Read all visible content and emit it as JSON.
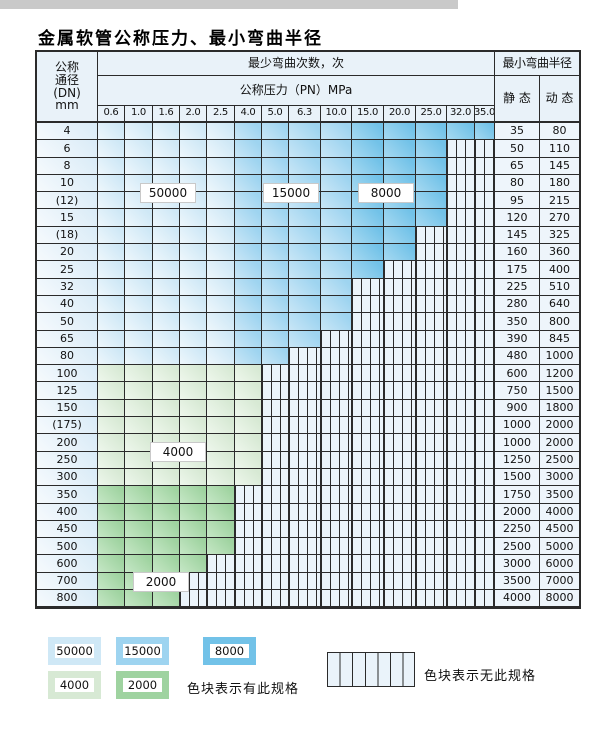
{
  "title": "金属软管公称压力、最小弯曲半径",
  "table": {
    "dn_header": "公称\n通径\n(DN)\nmm",
    "bend_times_label": "最少弯曲次数，次",
    "pn_label": "公称压力（PN）MPa",
    "bend_radius_label": "最小弯曲半径",
    "static_label": "静 态",
    "dynamic_label": "动 态",
    "pressure_columns": [
      "0.6",
      "1.0",
      "1.6",
      "2.0",
      "2.5",
      "4.0",
      "5.0",
      "6.3",
      "10.0",
      "15.0",
      "20.0",
      "25.0",
      "32.0",
      "35.0"
    ],
    "rows": [
      {
        "dn": "4",
        "zone": "blue",
        "last_col": 13,
        "static": "35",
        "dynamic": "80"
      },
      {
        "dn": "6",
        "zone": "blue",
        "last_col": 11,
        "static": "50",
        "dynamic": "110"
      },
      {
        "dn": "8",
        "zone": "blue",
        "last_col": 11,
        "static": "65",
        "dynamic": "145"
      },
      {
        "dn": "10",
        "zone": "blue",
        "last_col": 11,
        "static": "80",
        "dynamic": "180"
      },
      {
        "dn": "(12)",
        "zone": "blue",
        "last_col": 11,
        "static": "95",
        "dynamic": "215"
      },
      {
        "dn": "15",
        "zone": "blue",
        "last_col": 11,
        "static": "120",
        "dynamic": "270"
      },
      {
        "dn": "(18)",
        "zone": "blue",
        "last_col": 10,
        "static": "145",
        "dynamic": "325"
      },
      {
        "dn": "20",
        "zone": "blue",
        "last_col": 10,
        "static": "160",
        "dynamic": "360"
      },
      {
        "dn": "25",
        "zone": "blue",
        "last_col": 9,
        "static": "175",
        "dynamic": "400"
      },
      {
        "dn": "32",
        "zone": "blue",
        "last_col": 8,
        "static": "225",
        "dynamic": "510"
      },
      {
        "dn": "40",
        "zone": "blue",
        "last_col": 8,
        "static": "280",
        "dynamic": "640"
      },
      {
        "dn": "50",
        "zone": "blue",
        "last_col": 8,
        "static": "350",
        "dynamic": "800"
      },
      {
        "dn": "65",
        "zone": "blue",
        "last_col": 7,
        "static": "390",
        "dynamic": "845"
      },
      {
        "dn": "80",
        "zone": "blue",
        "last_col": 6,
        "static": "480",
        "dynamic": "1000"
      },
      {
        "dn": "100",
        "zone": "green4000",
        "last_col": 5,
        "static": "600",
        "dynamic": "1200"
      },
      {
        "dn": "125",
        "zone": "green4000",
        "last_col": 5,
        "static": "750",
        "dynamic": "1500"
      },
      {
        "dn": "150",
        "zone": "green4000",
        "last_col": 5,
        "static": "900",
        "dynamic": "1800"
      },
      {
        "dn": "(175)",
        "zone": "green4000",
        "last_col": 5,
        "static": "1000",
        "dynamic": "2000"
      },
      {
        "dn": "200",
        "zone": "green4000",
        "last_col": 5,
        "static": "1000",
        "dynamic": "2000"
      },
      {
        "dn": "250",
        "zone": "green4000",
        "last_col": 5,
        "static": "1250",
        "dynamic": "2500"
      },
      {
        "dn": "300",
        "zone": "green4000",
        "last_col": 5,
        "static": "1500",
        "dynamic": "3000"
      },
      {
        "dn": "350",
        "zone": "green2000",
        "last_col": 4,
        "static": "1750",
        "dynamic": "3500"
      },
      {
        "dn": "400",
        "zone": "green2000",
        "last_col": 4,
        "static": "2000",
        "dynamic": "4000"
      },
      {
        "dn": "450",
        "zone": "green2000",
        "last_col": 4,
        "static": "2250",
        "dynamic": "4500"
      },
      {
        "dn": "500",
        "zone": "green2000",
        "last_col": 4,
        "static": "2500",
        "dynamic": "5000"
      },
      {
        "dn": "600",
        "zone": "green2000",
        "last_col": 3,
        "static": "3000",
        "dynamic": "6000"
      },
      {
        "dn": "700",
        "zone": "green2000",
        "last_col": 2,
        "static": "3500",
        "dynamic": "7000"
      },
      {
        "dn": "800",
        "zone": "green2000",
        "last_col": 2,
        "static": "4000",
        "dynamic": "8000"
      }
    ]
  },
  "overlay_labels": {
    "l50000": "50000",
    "l15000": "15000",
    "l8000": "8000",
    "l4000": "4000",
    "l2000": "2000"
  },
  "colors": {
    "band_50000": [
      "#cfe8f6",
      "#eef7fc"
    ],
    "band_15000": [
      "#9ed4f0",
      "#c9e6f6"
    ],
    "band_8000": [
      "#72c2e8",
      "#a6d9f1"
    ],
    "green_4000": [
      "#d7e9d4",
      "#eef7ec"
    ],
    "green_2000": [
      "#9fd3a0",
      "#c6e7c6"
    ],
    "hatch_fill": "#ebf4fa",
    "grid_line": "#2b2b2b"
  },
  "legend": {
    "swatches": [
      {
        "label": "50000"
      },
      {
        "label": "15000"
      },
      {
        "label": "8000"
      },
      {
        "label": "4000"
      },
      {
        "label": "2000"
      }
    ],
    "has_spec_text": "色块表示有此规格",
    "no_spec_text": "色块表示无此规格"
  }
}
